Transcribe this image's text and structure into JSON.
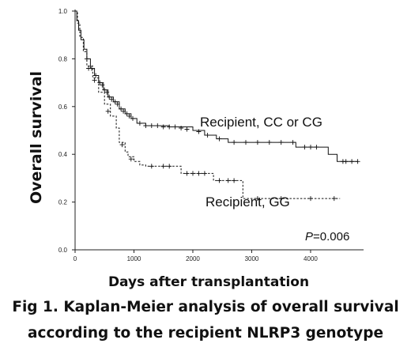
{
  "chart_data": {
    "type": "line",
    "title": "",
    "xlabel": "Days after transplantation",
    "ylabel": "Overall survival",
    "xlim": [
      0,
      4900
    ],
    "ylim": [
      0,
      1.0
    ],
    "xticks": [
      "0",
      "1000",
      "2000",
      "3000",
      "4000"
    ],
    "yticks": [
      "0.0",
      "0.2",
      "0.4",
      "0.6",
      "0.8",
      "1.0"
    ],
    "grid": false,
    "legend": "none",
    "series": [
      {
        "name": "Recipient, CC or CG",
        "style": "solid",
        "color": "#111111",
        "steps": [
          [
            0,
            1.0
          ],
          [
            30,
            0.96
          ],
          [
            60,
            0.92
          ],
          [
            100,
            0.88
          ],
          [
            150,
            0.84
          ],
          [
            200,
            0.8
          ],
          [
            260,
            0.76
          ],
          [
            330,
            0.73
          ],
          [
            400,
            0.7
          ],
          [
            480,
            0.67
          ],
          [
            560,
            0.64
          ],
          [
            650,
            0.62
          ],
          [
            750,
            0.59
          ],
          [
            850,
            0.57
          ],
          [
            950,
            0.55
          ],
          [
            1050,
            0.53
          ],
          [
            1200,
            0.52
          ],
          [
            1600,
            0.515
          ],
          [
            2000,
            0.5
          ],
          [
            2200,
            0.48
          ],
          [
            2400,
            0.465
          ],
          [
            2600,
            0.45
          ],
          [
            3700,
            0.45
          ],
          [
            3750,
            0.43
          ],
          [
            4250,
            0.43
          ],
          [
            4300,
            0.4
          ],
          [
            4450,
            0.37
          ],
          [
            4800,
            0.37
          ]
        ],
        "censors": [
          [
            200,
            0.8
          ],
          [
            280,
            0.76
          ],
          [
            350,
            0.73
          ],
          [
            420,
            0.7
          ],
          [
            460,
            0.69
          ],
          [
            500,
            0.67
          ],
          [
            540,
            0.66
          ],
          [
            580,
            0.64
          ],
          [
            620,
            0.63
          ],
          [
            680,
            0.62
          ],
          [
            720,
            0.61
          ],
          [
            780,
            0.59
          ],
          [
            820,
            0.58
          ],
          [
            880,
            0.57
          ],
          [
            920,
            0.56
          ],
          [
            980,
            0.55
          ],
          [
            1100,
            0.53
          ],
          [
            1200,
            0.52
          ],
          [
            1300,
            0.52
          ],
          [
            1400,
            0.52
          ],
          [
            1500,
            0.515
          ],
          [
            1600,
            0.515
          ],
          [
            1700,
            0.515
          ],
          [
            1800,
            0.51
          ],
          [
            1900,
            0.505
          ],
          [
            2100,
            0.495
          ],
          [
            2250,
            0.48
          ],
          [
            2450,
            0.465
          ],
          [
            2700,
            0.45
          ],
          [
            2900,
            0.45
          ],
          [
            3100,
            0.45
          ],
          [
            3300,
            0.45
          ],
          [
            3500,
            0.45
          ],
          [
            3700,
            0.45
          ],
          [
            3900,
            0.43
          ],
          [
            4000,
            0.43
          ],
          [
            4100,
            0.43
          ],
          [
            4550,
            0.37
          ],
          [
            4600,
            0.37
          ],
          [
            4700,
            0.37
          ],
          [
            4800,
            0.37
          ]
        ]
      },
      {
        "name": "Recipient, GG",
        "style": "dashed",
        "color": "#111111",
        "steps": [
          [
            0,
            1.0
          ],
          [
            40,
            0.95
          ],
          [
            80,
            0.89
          ],
          [
            140,
            0.83
          ],
          [
            200,
            0.77
          ],
          [
            300,
            0.72
          ],
          [
            400,
            0.66
          ],
          [
            500,
            0.61
          ],
          [
            600,
            0.56
          ],
          [
            700,
            0.51
          ],
          [
            750,
            0.45
          ],
          [
            850,
            0.41
          ],
          [
            900,
            0.39
          ],
          [
            1000,
            0.37
          ],
          [
            1100,
            0.355
          ],
          [
            1200,
            0.35
          ],
          [
            1700,
            0.35
          ],
          [
            1800,
            0.32
          ],
          [
            2300,
            0.32
          ],
          [
            2350,
            0.29
          ],
          [
            2800,
            0.29
          ],
          [
            2850,
            0.215
          ],
          [
            4500,
            0.215
          ]
        ],
        "censors": [
          [
            230,
            0.76
          ],
          [
            330,
            0.71
          ],
          [
            560,
            0.58
          ],
          [
            800,
            0.44
          ],
          [
            950,
            0.38
          ],
          [
            1300,
            0.35
          ],
          [
            1500,
            0.35
          ],
          [
            1600,
            0.35
          ],
          [
            1900,
            0.32
          ],
          [
            2000,
            0.32
          ],
          [
            2100,
            0.32
          ],
          [
            2200,
            0.32
          ],
          [
            2450,
            0.29
          ],
          [
            2600,
            0.29
          ],
          [
            2700,
            0.29
          ],
          [
            3100,
            0.215
          ],
          [
            3500,
            0.215
          ],
          [
            4000,
            0.215
          ],
          [
            4400,
            0.215
          ]
        ]
      }
    ],
    "annotations": {
      "label_upper": "Recipient, CC or CG",
      "label_lower": "Recipient, GG",
      "p_prefix": "P",
      "p_value": "=0.006"
    }
  },
  "caption": {
    "line1": "Fig 1. Kaplan-Meier analysis of overall survival",
    "line2": "according to the recipient NLRP3 genotype"
  }
}
